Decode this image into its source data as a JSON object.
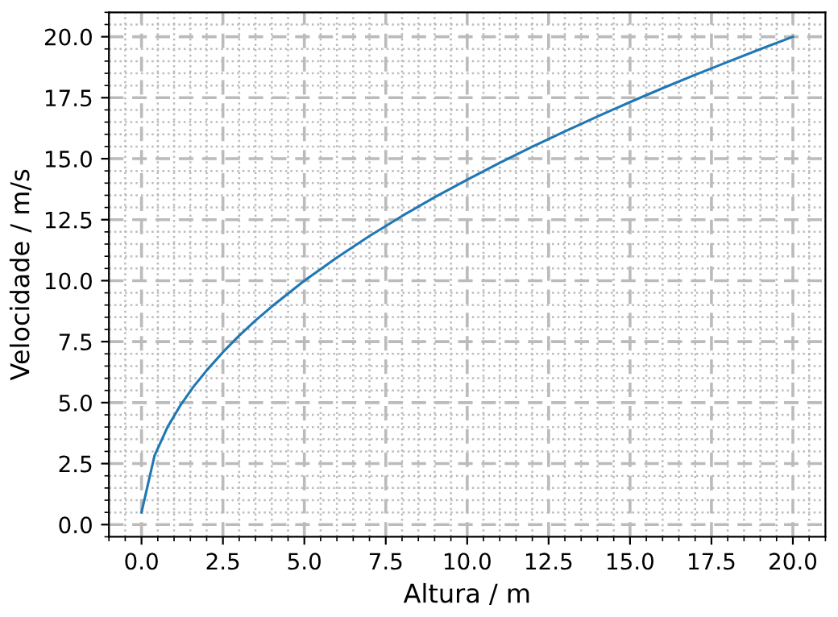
{
  "chart_data": {
    "type": "line",
    "xlabel": "Altura / m",
    "ylabel": "Velocidade / m/s",
    "x": [
      0,
      0.4,
      0.8,
      1.2,
      1.6,
      2,
      2.5,
      3,
      3.5,
      4,
      5,
      6,
      7,
      8,
      9,
      10,
      11,
      12,
      13,
      14,
      15,
      16,
      17,
      18,
      19,
      20
    ],
    "series": [
      {
        "color": "#1f77b4",
        "values": [
          0.5,
          2.83,
          4.0,
          4.9,
          5.66,
          6.32,
          7.07,
          7.75,
          8.37,
          8.94,
          10.0,
          10.95,
          11.83,
          12.65,
          13.42,
          14.14,
          14.83,
          15.49,
          16.12,
          16.73,
          17.32,
          17.89,
          18.44,
          18.97,
          19.49,
          20.0
        ]
      }
    ],
    "xlim": [
      -1,
      21
    ],
    "ylim": [
      -0.5,
      21
    ],
    "xticks": [
      {
        "value": 0,
        "label": "0.0"
      },
      {
        "value": 2.5,
        "label": "2.5"
      },
      {
        "value": 5,
        "label": "5.0"
      },
      {
        "value": 7.5,
        "label": "7.5"
      },
      {
        "value": 10,
        "label": "10.0"
      },
      {
        "value": 12.5,
        "label": "12.5"
      },
      {
        "value": 15,
        "label": "15.0"
      },
      {
        "value": 17.5,
        "label": "17.5"
      },
      {
        "value": 20,
        "label": "20.0"
      }
    ],
    "yticks": [
      {
        "value": 0,
        "label": "0.0"
      },
      {
        "value": 2.5,
        "label": "2.5"
      },
      {
        "value": 5,
        "label": "5.0"
      },
      {
        "value": 7.5,
        "label": "7.5"
      },
      {
        "value": 10,
        "label": "10.0"
      },
      {
        "value": 12.5,
        "label": "12.5"
      },
      {
        "value": 15,
        "label": "15.0"
      },
      {
        "value": 17.5,
        "label": "17.5"
      },
      {
        "value": 20,
        "label": "20.0"
      }
    ],
    "grid": true,
    "marker": "none",
    "line_style": "solid"
  }
}
